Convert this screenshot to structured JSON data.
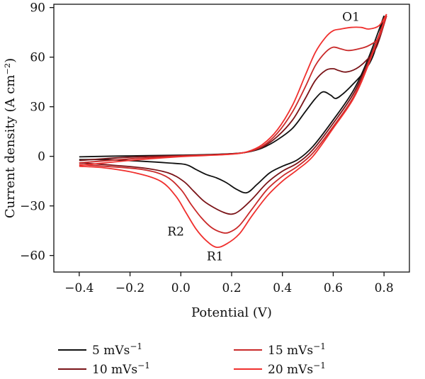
{
  "chart_data": {
    "type": "line",
    "xlabel": "Potential (V)",
    "ylabel": "Current density (A cm⁻²)",
    "xlim": [
      -0.5,
      0.9
    ],
    "ylim": [
      -70,
      92
    ],
    "xticks": [
      -0.4,
      -0.2,
      0.0,
      0.2,
      0.4,
      0.6,
      0.8
    ],
    "xtick_labels": [
      "−0.4",
      "−0.2",
      "0.0",
      "0.2",
      "0.4",
      "0.6",
      "0.8"
    ],
    "yticks": [
      -60,
      -30,
      0,
      30,
      60,
      90
    ],
    "ytick_labels": [
      "−60",
      "−30",
      "0",
      "30",
      "60",
      "90"
    ],
    "grid": false,
    "legend_position": "bottom",
    "annotations": [
      {
        "text": "O1",
        "x": 0.67,
        "y": 82
      },
      {
        "text": "R2",
        "x": -0.02,
        "y": -48
      },
      {
        "text": "R1",
        "x": 0.135,
        "y": -63
      }
    ],
    "series": [
      {
        "name": "5 mVs⁻¹",
        "legend_label": "5 mVs",
        "legend_sup": "−1",
        "color": "#111111",
        "forward": [
          [
            -0.4,
            -0.3
          ],
          [
            -0.2,
            0.3
          ],
          [
            0.0,
            0.7
          ],
          [
            0.1,
            1.0
          ],
          [
            0.2,
            1.6
          ],
          [
            0.26,
            2.5
          ],
          [
            0.32,
            5
          ],
          [
            0.38,
            10
          ],
          [
            0.44,
            17
          ],
          [
            0.49,
            27
          ],
          [
            0.53,
            35
          ],
          [
            0.56,
            39
          ],
          [
            0.59,
            37
          ],
          [
            0.61,
            35
          ],
          [
            0.64,
            38
          ],
          [
            0.68,
            44
          ],
          [
            0.72,
            51
          ],
          [
            0.76,
            62
          ],
          [
            0.8,
            85
          ]
        ],
        "reverse": [
          [
            0.8,
            85
          ],
          [
            0.74,
            60
          ],
          [
            0.68,
            40
          ],
          [
            0.6,
            22
          ],
          [
            0.52,
            6
          ],
          [
            0.46,
            -2
          ],
          [
            0.4,
            -6
          ],
          [
            0.35,
            -10
          ],
          [
            0.3,
            -17
          ],
          [
            0.26,
            -22
          ],
          [
            0.22,
            -20
          ],
          [
            0.18,
            -16
          ],
          [
            0.14,
            -13
          ],
          [
            0.1,
            -11
          ],
          [
            0.06,
            -8
          ],
          [
            0.02,
            -5
          ],
          [
            -0.05,
            -4
          ],
          [
            -0.15,
            -3
          ],
          [
            -0.3,
            -2
          ],
          [
            -0.4,
            -2
          ]
        ]
      },
      {
        "name": "10 mVs⁻¹",
        "legend_label": "10 mVs",
        "legend_sup": "−1",
        "color": "#7a1418",
        "forward": [
          [
            -0.4,
            -2.5
          ],
          [
            -0.2,
            -0.5
          ],
          [
            0.0,
            0.4
          ],
          [
            0.1,
            0.8
          ],
          [
            0.2,
            1.5
          ],
          [
            0.26,
            2.6
          ],
          [
            0.32,
            5.5
          ],
          [
            0.38,
            12
          ],
          [
            0.44,
            22
          ],
          [
            0.49,
            35
          ],
          [
            0.53,
            46
          ],
          [
            0.57,
            52
          ],
          [
            0.6,
            53
          ],
          [
            0.62,
            52
          ],
          [
            0.65,
            51
          ],
          [
            0.69,
            53
          ],
          [
            0.73,
            58
          ],
          [
            0.77,
            66
          ],
          [
            0.81,
            85
          ]
        ],
        "reverse": [
          [
            0.81,
            85
          ],
          [
            0.74,
            58
          ],
          [
            0.68,
            38
          ],
          [
            0.6,
            20
          ],
          [
            0.52,
            4
          ],
          [
            0.46,
            -4
          ],
          [
            0.4,
            -9
          ],
          [
            0.34,
            -16
          ],
          [
            0.28,
            -26
          ],
          [
            0.23,
            -33
          ],
          [
            0.2,
            -35
          ],
          [
            0.17,
            -34
          ],
          [
            0.13,
            -31
          ],
          [
            0.09,
            -27
          ],
          [
            0.05,
            -21
          ],
          [
            0.01,
            -15
          ],
          [
            -0.05,
            -10
          ],
          [
            -0.15,
            -7
          ],
          [
            -0.3,
            -5
          ],
          [
            -0.4,
            -4
          ]
        ]
      },
      {
        "name": "15 mVs⁻¹",
        "legend_label": "15 mVs",
        "legend_sup": "−1",
        "color": "#c92a2a",
        "forward": [
          [
            -0.4,
            -4
          ],
          [
            -0.2,
            -1.5
          ],
          [
            0.0,
            0.2
          ],
          [
            0.1,
            0.7
          ],
          [
            0.2,
            1.4
          ],
          [
            0.26,
            2.6
          ],
          [
            0.32,
            6
          ],
          [
            0.38,
            14
          ],
          [
            0.44,
            27
          ],
          [
            0.49,
            42
          ],
          [
            0.53,
            55
          ],
          [
            0.57,
            63
          ],
          [
            0.6,
            66
          ],
          [
            0.63,
            65
          ],
          [
            0.66,
            64
          ],
          [
            0.7,
            65
          ],
          [
            0.74,
            67
          ],
          [
            0.78,
            72
          ],
          [
            0.81,
            85
          ]
        ],
        "reverse": [
          [
            0.81,
            85
          ],
          [
            0.74,
            57
          ],
          [
            0.68,
            36
          ],
          [
            0.6,
            18
          ],
          [
            0.52,
            2
          ],
          [
            0.46,
            -6
          ],
          [
            0.4,
            -12
          ],
          [
            0.34,
            -20
          ],
          [
            0.28,
            -32
          ],
          [
            0.23,
            -42
          ],
          [
            0.19,
            -46
          ],
          [
            0.16,
            -46
          ],
          [
            0.12,
            -43
          ],
          [
            0.08,
            -37
          ],
          [
            0.04,
            -29
          ],
          [
            0.0,
            -20
          ],
          [
            -0.06,
            -12
          ],
          [
            -0.15,
            -8
          ],
          [
            -0.3,
            -6
          ],
          [
            -0.4,
            -5
          ]
        ]
      },
      {
        "name": "20 mVs⁻¹",
        "legend_label": "20 mVs",
        "legend_sup": "−1",
        "color": "#f0302e",
        "forward": [
          [
            -0.4,
            -5.5
          ],
          [
            -0.2,
            -2.5
          ],
          [
            0.0,
            -0.2
          ],
          [
            0.1,
            0.5
          ],
          [
            0.2,
            1.3
          ],
          [
            0.26,
            2.7
          ],
          [
            0.32,
            7
          ],
          [
            0.38,
            16
          ],
          [
            0.44,
            31
          ],
          [
            0.49,
            49
          ],
          [
            0.53,
            63
          ],
          [
            0.57,
            72
          ],
          [
            0.6,
            76
          ],
          [
            0.63,
            77
          ],
          [
            0.67,
            78
          ],
          [
            0.71,
            78
          ],
          [
            0.74,
            77
          ],
          [
            0.78,
            79
          ],
          [
            0.81,
            86
          ]
        ],
        "reverse": [
          [
            0.81,
            86
          ],
          [
            0.74,
            56
          ],
          [
            0.68,
            35
          ],
          [
            0.6,
            17
          ],
          [
            0.52,
            0
          ],
          [
            0.46,
            -8
          ],
          [
            0.4,
            -15
          ],
          [
            0.34,
            -24
          ],
          [
            0.28,
            -36
          ],
          [
            0.23,
            -47
          ],
          [
            0.18,
            -53
          ],
          [
            0.14,
            -55
          ],
          [
            0.1,
            -51
          ],
          [
            0.06,
            -44
          ],
          [
            0.02,
            -34
          ],
          [
            -0.02,
            -24
          ],
          [
            -0.08,
            -15
          ],
          [
            -0.18,
            -10
          ],
          [
            -0.3,
            -7
          ],
          [
            -0.4,
            -6
          ]
        ]
      }
    ]
  }
}
